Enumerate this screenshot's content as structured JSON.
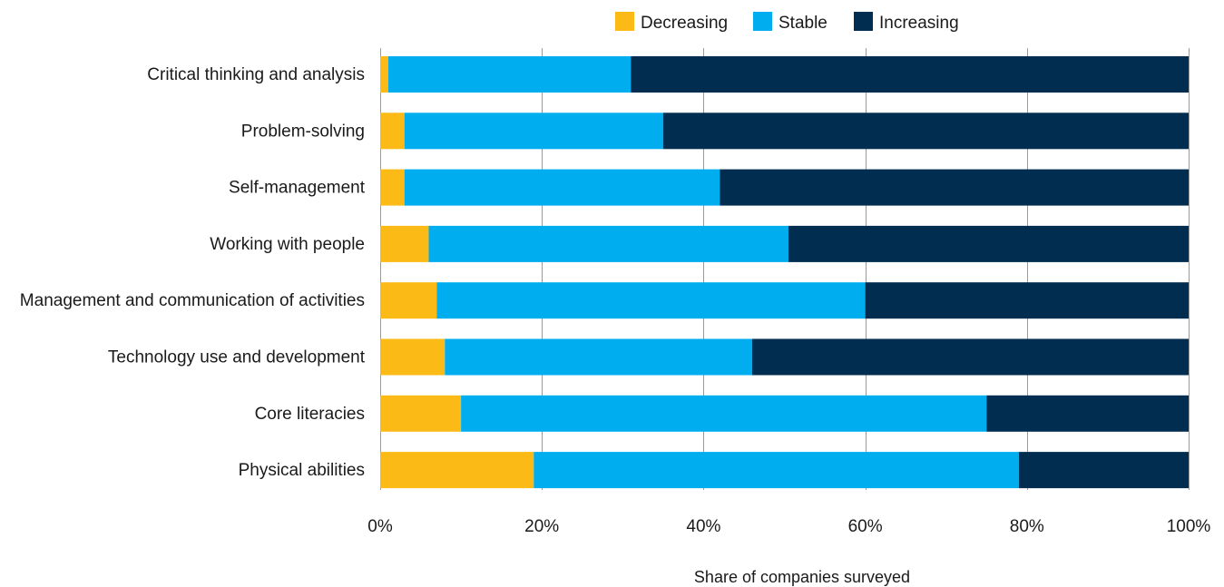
{
  "chart_data": {
    "type": "bar",
    "orientation": "horizontal",
    "stacked": true,
    "categories": [
      "Critical thinking and analysis",
      "Problem-solving",
      "Self-management",
      "Working with people",
      "Management and communication of activities",
      "Technology use and development",
      "Core literacies",
      "Physical abilities"
    ],
    "series": [
      {
        "name": "Decreasing",
        "color": "#FBBA16",
        "values": [
          1,
          3,
          3,
          6,
          7,
          8,
          10,
          19
        ]
      },
      {
        "name": "Stable",
        "color": "#00AEEF",
        "values": [
          30,
          32,
          39,
          44.5,
          53,
          38,
          65,
          60
        ]
      },
      {
        "name": "Increasing",
        "color": "#002D50",
        "values": [
          69,
          65,
          58,
          49.5,
          40,
          54,
          25,
          21
        ]
      }
    ],
    "xlabel": "Share of companies surveyed",
    "ylabel": "",
    "xlim": [
      0,
      100
    ],
    "x_ticks": [
      "0%",
      "20%",
      "40%",
      "60%",
      "80%",
      "100%"
    ],
    "grid": "vertical",
    "legend_position": "top"
  }
}
